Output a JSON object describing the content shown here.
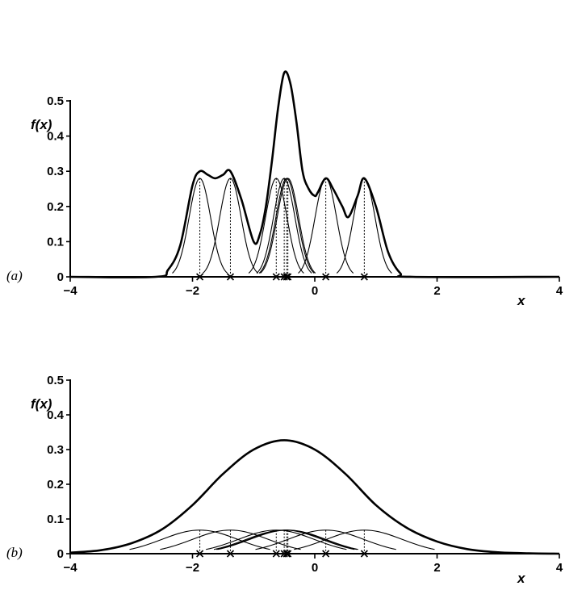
{
  "chart_data": [
    {
      "type": "line",
      "panel_label": "(a)",
      "ylabel": "f(x)",
      "xlabel": "x",
      "xlim": [
        -4,
        4
      ],
      "ylim": [
        0,
        0.5
      ],
      "x_ticks": [
        -4,
        -2,
        0,
        2,
        4
      ],
      "x_tick_labels": [
        "−4",
        "−2",
        "0",
        "2",
        "4"
      ],
      "y_ticks": [
        0,
        0.1,
        0.2,
        0.3,
        0.4,
        0.5
      ],
      "y_tick_labels": [
        "0",
        "0.1",
        "0.2",
        "0.3",
        "0.4",
        "0.5"
      ],
      "observations": [
        -1.88,
        -1.38,
        -0.63,
        -0.5,
        -0.46,
        -0.44,
        0.18,
        0.81
      ],
      "kernel_bandwidth": 0.175,
      "kernel_peak": 0.28,
      "kernel_half_width": 0.45,
      "density_curve": {
        "x": [
          -4,
          -2.6,
          -2.4,
          -2.2,
          -2.0,
          -1.88,
          -1.75,
          -1.63,
          -1.5,
          -1.38,
          -1.2,
          -1.0,
          -0.9,
          -0.8,
          -0.7,
          -0.6,
          -0.5,
          -0.4,
          -0.3,
          -0.2,
          -0.1,
          0.0,
          0.05,
          0.18,
          0.3,
          0.45,
          0.55,
          0.7,
          0.81,
          1.0,
          1.2,
          1.4,
          1.6,
          4
        ],
        "y": [
          0,
          0,
          0.02,
          0.09,
          0.26,
          0.3,
          0.29,
          0.28,
          0.29,
          0.3,
          0.22,
          0.1,
          0.12,
          0.2,
          0.33,
          0.48,
          0.58,
          0.55,
          0.44,
          0.3,
          0.25,
          0.23,
          0.24,
          0.28,
          0.25,
          0.2,
          0.17,
          0.23,
          0.28,
          0.2,
          0.07,
          0.01,
          0.0,
          0
        ]
      }
    },
    {
      "type": "line",
      "panel_label": "(b)",
      "ylabel": "f(x)",
      "xlabel": "x",
      "xlim": [
        -4,
        4
      ],
      "ylim": [
        0,
        0.5
      ],
      "x_ticks": [
        -4,
        -2,
        0,
        2,
        4
      ],
      "x_tick_labels": [
        "−4",
        "−2",
        "0",
        "2",
        "4"
      ],
      "y_ticks": [
        0,
        0.1,
        0.2,
        0.3,
        0.4,
        0.5
      ],
      "y_tick_labels": [
        "0",
        "0.1",
        "0.2",
        "0.3",
        "0.4",
        "0.5"
      ],
      "observations": [
        -1.88,
        -1.38,
        -0.63,
        -0.5,
        -0.46,
        -0.44,
        0.18,
        0.81
      ],
      "kernel_bandwidth": 0.62,
      "kernel_peak": 0.068,
      "kernel_half_width": 1.15,
      "density_curve": {
        "x": [
          -4,
          -3.5,
          -3.0,
          -2.5,
          -2.0,
          -1.5,
          -1.0,
          -0.5,
          0.0,
          0.5,
          1.0,
          1.5,
          2.0,
          2.5,
          3.0,
          3.5,
          4
        ],
        "y": [
          0.003,
          0.01,
          0.03,
          0.07,
          0.14,
          0.23,
          0.3,
          0.327,
          0.3,
          0.23,
          0.14,
          0.075,
          0.035,
          0.013,
          0.004,
          0.001,
          0.0
        ]
      }
    }
  ]
}
